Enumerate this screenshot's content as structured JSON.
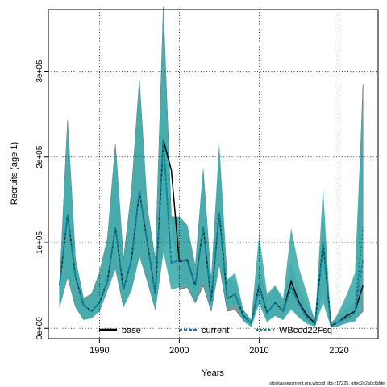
{
  "chart_data": {
    "type": "line",
    "xlabel": "Years",
    "ylabel": "Recruits (age 1)",
    "xlim": [
      1983.6,
      2024.9
    ],
    "ylim": [
      -12000,
      372000
    ],
    "grid": true,
    "legend_position": "bottom",
    "x_ticks": [
      {
        "value": 1990,
        "label": "1990"
      },
      {
        "value": 2000,
        "label": "2000"
      },
      {
        "value": 2010,
        "label": "2010"
      },
      {
        "value": 2020,
        "label": "2020"
      }
    ],
    "y_ticks": [
      {
        "value": 0,
        "label": "0e+00"
      },
      {
        "value": 100000,
        "label": "1e+05"
      },
      {
        "value": 200000,
        "label": "2e+05"
      },
      {
        "value": 300000,
        "label": "3e+05"
      }
    ],
    "x": [
      1985,
      1986,
      1987,
      1988,
      1989,
      1990,
      1991,
      1992,
      1993,
      1994,
      1995,
      1996,
      1997,
      1998,
      1999,
      2000,
      2001,
      2002,
      2003,
      2004,
      2005,
      2006,
      2007,
      2008,
      2009,
      2010,
      2011,
      2012,
      2013,
      2014,
      2015,
      2016,
      2017,
      2018,
      2019,
      2020,
      2021,
      2022,
      2023
    ],
    "series": [
      {
        "name": "base",
        "color": "#000000",
        "dash": "solid",
        "lower": [
          25000,
          60000,
          25000,
          10000,
          12000,
          20000,
          45000,
          70000,
          25000,
          45000,
          85000,
          55000,
          22000,
          90000,
          130000,
          45000,
          48000,
          30000,
          50000,
          20000,
          75000,
          20000,
          22000,
          10000,
          2000,
          30000,
          8000,
          15000,
          10000,
          25000,
          15000,
          8000,
          3000,
          45000,
          1000,
          3000,
          8000,
          10000,
          20000
        ],
        "center": [
          50000,
          132000,
          60000,
          27000,
          20000,
          30000,
          55000,
          118000,
          45000,
          80000,
          160000,
          100000,
          40000,
          220000,
          185000,
          78000,
          80000,
          50000,
          118000,
          32000,
          135000,
          35000,
          40000,
          15000,
          6000,
          50000,
          18000,
          30000,
          20000,
          55000,
          30000,
          15000,
          6000,
          100000,
          3000,
          8000,
          15000,
          20000,
          50000
        ],
        "upper": [
          50000,
          243000,
          80000,
          35000,
          40000,
          65000,
          105000,
          215000,
          80000,
          160000,
          290000,
          140000,
          80000,
          375000,
          130000,
          130000,
          120000,
          72000,
          185000,
          55000,
          210000,
          57000,
          55000,
          22000,
          8000,
          72000,
          35000,
          48000,
          30000,
          75000,
          45000,
          28000,
          10000,
          130000,
          6000,
          15000,
          25000,
          30000,
          285000
        ]
      },
      {
        "name": "current",
        "color": "#1f77b4",
        "dash": "dashed",
        "lower": [
          25000,
          60000,
          25000,
          10000,
          12000,
          20000,
          45000,
          70000,
          25000,
          45000,
          85000,
          55000,
          22000,
          90000,
          45000,
          48000,
          50000,
          30000,
          55000,
          20000,
          75000,
          22000,
          28000,
          8000,
          2000,
          28000,
          8000,
          15000,
          10000,
          22000,
          12000,
          5000,
          2000,
          30000,
          1000,
          3000,
          6000,
          8000,
          25000
        ],
        "center": [
          50000,
          132000,
          60000,
          27000,
          20000,
          30000,
          55000,
          118000,
          45000,
          80000,
          160000,
          100000,
          40000,
          220000,
          76000,
          80000,
          78000,
          50000,
          118000,
          32000,
          135000,
          35000,
          40000,
          14000,
          6000,
          48000,
          18000,
          30000,
          20000,
          48000,
          28000,
          12000,
          5000,
          100000,
          2000,
          8000,
          12000,
          18000,
          80000
        ],
        "upper": [
          50000,
          243000,
          80000,
          35000,
          40000,
          65000,
          105000,
          215000,
          80000,
          160000,
          290000,
          140000,
          80000,
          375000,
          128000,
          130000,
          120000,
          72000,
          188000,
          55000,
          215000,
          57000,
          65000,
          22000,
          10000,
          110000,
          40000,
          50000,
          35000,
          117000,
          70000,
          40000,
          8000,
          165000,
          3000,
          20000,
          40000,
          65000,
          280000
        ]
      },
      {
        "name": "WBcod22Fsq",
        "color": "#008b8b",
        "dash": "dashed",
        "lower": [
          25000,
          60000,
          25000,
          10000,
          12000,
          20000,
          45000,
          70000,
          25000,
          45000,
          85000,
          55000,
          22000,
          90000,
          45000,
          48000,
          50000,
          30000,
          55000,
          20000,
          75000,
          22000,
          28000,
          8000,
          2000,
          28000,
          8000,
          15000,
          10000,
          22000,
          12000,
          5000,
          2000,
          30000,
          1000,
          3000,
          6000,
          8000,
          25000
        ],
        "center": [
          50000,
          132000,
          60000,
          27000,
          20000,
          30000,
          55000,
          118000,
          45000,
          80000,
          160000,
          100000,
          40000,
          220000,
          76000,
          80000,
          78000,
          50000,
          118000,
          32000,
          135000,
          35000,
          40000,
          14000,
          6000,
          48000,
          18000,
          30000,
          20000,
          48000,
          28000,
          12000,
          5000,
          100000,
          2000,
          8000,
          12000,
          18000,
          118000
        ],
        "upper": [
          50000,
          243000,
          80000,
          35000,
          40000,
          65000,
          105000,
          215000,
          80000,
          160000,
          290000,
          140000,
          80000,
          375000,
          128000,
          130000,
          120000,
          72000,
          188000,
          55000,
          215000,
          57000,
          65000,
          22000,
          10000,
          110000,
          40000,
          50000,
          35000,
          117000,
          70000,
          40000,
          8000,
          165000,
          3000,
          20000,
          40000,
          65000,
          280000
        ]
      }
    ],
    "band_colors": {
      "base": "#7f7f7f",
      "current": "#a6d4ea",
      "WBcod22Fsq": "#2ca5a0"
    },
    "footer_text": "stockassessment.org,wbcod_jbo,r17225, gitec2c2a0c6dde"
  }
}
